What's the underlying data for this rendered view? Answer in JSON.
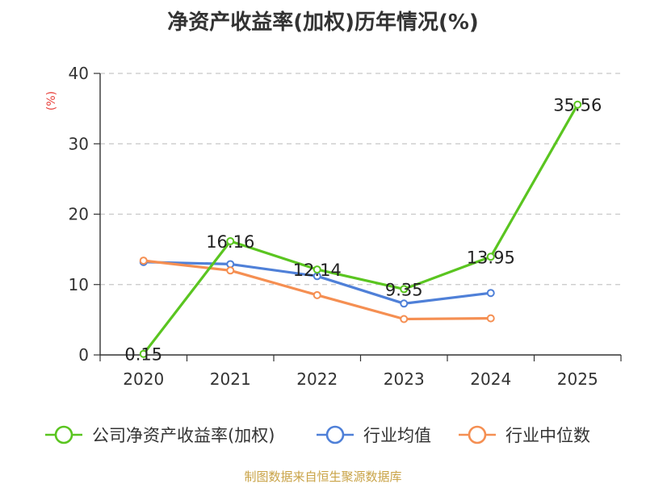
{
  "chart_data": {
    "type": "line",
    "title": "净资产收益率(加权)历年情况(%)",
    "ylabel": "(%)",
    "categories": [
      "2020",
      "2021",
      "2022",
      "2023",
      "2024",
      "2025"
    ],
    "ylim": [
      0,
      40
    ],
    "yticks": [
      0,
      10,
      20,
      30,
      40
    ],
    "grid": true,
    "legend_position": "bottom",
    "series": [
      {
        "name": "公司净资产收益率(加权)",
        "color": "#5ac520",
        "values": [
          0.15,
          16.16,
          12.14,
          9.35,
          13.95,
          35.56
        ],
        "labels": [
          "0.15",
          "16.16",
          "12.14",
          "9.35",
          "13.95",
          "35.56"
        ]
      },
      {
        "name": "行业均值",
        "color": "#4f80d8",
        "values": [
          13.2,
          12.9,
          11.2,
          7.3,
          8.8,
          null
        ]
      },
      {
        "name": "行业中位数",
        "color": "#f58f52",
        "values": [
          13.4,
          12.0,
          8.5,
          5.1,
          5.2,
          null
        ]
      }
    ]
  },
  "source": "制图数据来自恒生聚源数据库"
}
